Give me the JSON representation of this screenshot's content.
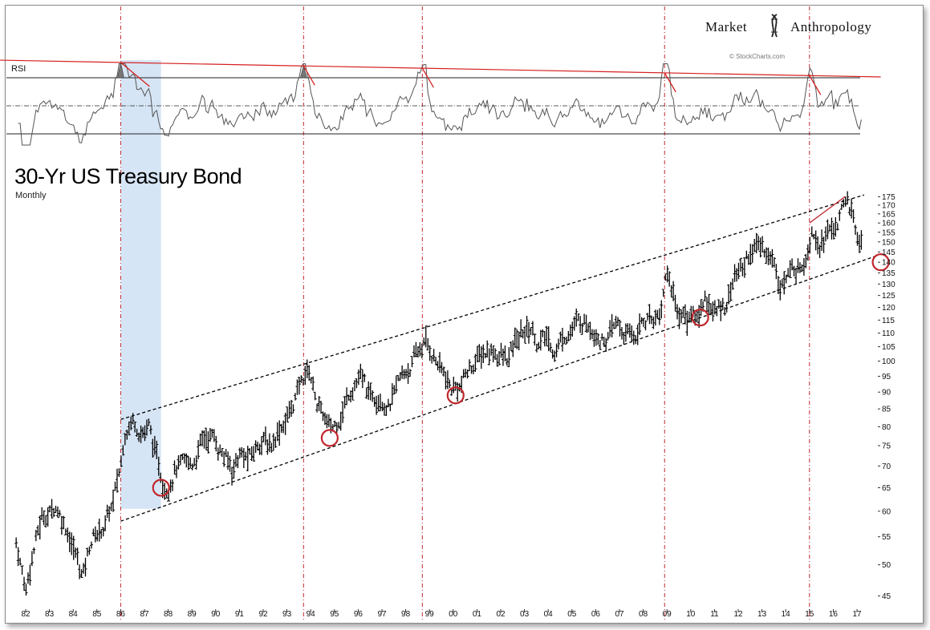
{
  "brand": {
    "left": "Market",
    "right": "Anthropology"
  },
  "watermark": "© StockCharts.com",
  "chart_data": [
    {
      "type": "line",
      "title": "RSI",
      "series": [],
      "levels": [
        70,
        50,
        30
      ],
      "resistance_trendline": {
        "from_year": 1980.8,
        "to_year": 2018.0,
        "description": "descending red line along RSI peaks"
      },
      "peaks_marked": [
        1986.0,
        1993.7,
        1998.7,
        2008.9,
        2015.0
      ],
      "colors": {
        "line": "#555555",
        "level": "#222222",
        "trend": "#d62020",
        "peak_fill": "#777777"
      }
    },
    {
      "type": "line",
      "title": "30-Yr US Treasury Bond",
      "subtitle": "Monthly",
      "y_scale": "log",
      "ylim": [
        43,
        180
      ],
      "y_ticks": [
        45,
        50,
        55,
        60,
        65,
        70,
        75,
        80,
        85,
        90,
        95,
        100,
        105,
        110,
        115,
        120,
        125,
        130,
        135,
        140,
        145,
        150,
        155,
        160,
        165,
        170,
        175
      ],
      "x_tick_labels": [
        "82",
        "83",
        "84",
        "85",
        "86",
        "87",
        "88",
        "89",
        "90",
        "91",
        "92",
        "93",
        "94",
        "95",
        "96",
        "97",
        "98",
        "99",
        "00",
        "01",
        "02",
        "03",
        "04",
        "05",
        "06",
        "07",
        "08",
        "09",
        "10",
        "11",
        "12",
        "13",
        "14",
        "15",
        "16",
        "17"
      ],
      "x_tick_years": [
        1982,
        1983,
        1984,
        1985,
        1986,
        1987,
        1988,
        1989,
        1990,
        1991,
        1992,
        1993,
        1994,
        1995,
        1996,
        1997,
        1998,
        1999,
        2000,
        2001,
        2002,
        2003,
        2004,
        2005,
        2006,
        2007,
        2008,
        2009,
        2010,
        2011,
        2012,
        2013,
        2014,
        2015,
        2016,
        2017
      ],
      "anchors": [
        [
          1981.6,
          54
        ],
        [
          1982.0,
          46
        ],
        [
          1982.3,
          52
        ],
        [
          1982.7,
          59
        ],
        [
          1983.3,
          61
        ],
        [
          1983.8,
          56
        ],
        [
          1984.4,
          48
        ],
        [
          1984.8,
          55
        ],
        [
          1985.3,
          57
        ],
        [
          1985.7,
          62
        ],
        [
          1986.0,
          70
        ],
        [
          1986.2,
          80
        ],
        [
          1986.5,
          82
        ],
        [
          1986.9,
          79
        ],
        [
          1987.2,
          80
        ],
        [
          1987.4,
          74
        ],
        [
          1987.8,
          66
        ],
        [
          1988.0,
          66
        ],
        [
          1988.3,
          70
        ],
        [
          1988.7,
          70
        ],
        [
          1989.0,
          70
        ],
        [
          1989.4,
          76
        ],
        [
          1989.8,
          78
        ],
        [
          1990.2,
          74
        ],
        [
          1990.7,
          69
        ],
        [
          1991.0,
          73
        ],
        [
          1991.5,
          72
        ],
        [
          1991.9,
          77
        ],
        [
          1992.3,
          75
        ],
        [
          1992.7,
          80
        ],
        [
          1993.2,
          85
        ],
        [
          1993.6,
          93
        ],
        [
          1993.9,
          98
        ],
        [
          1994.3,
          86
        ],
        [
          1994.8,
          79
        ],
        [
          1995.0,
          80
        ],
        [
          1995.4,
          86
        ],
        [
          1995.8,
          93
        ],
        [
          1996.1,
          95
        ],
        [
          1996.5,
          88
        ],
        [
          1996.9,
          90
        ],
        [
          1997.3,
          86
        ],
        [
          1997.7,
          92
        ],
        [
          1998.0,
          96
        ],
        [
          1998.4,
          101
        ],
        [
          1998.8,
          107
        ],
        [
          1999.1,
          103
        ],
        [
          1999.5,
          97
        ],
        [
          1999.9,
          91
        ],
        [
          2000.3,
          92
        ],
        [
          2000.7,
          97
        ],
        [
          2000.9,
          100
        ],
        [
          2001.3,
          103
        ],
        [
          2001.7,
          104
        ],
        [
          2002.0,
          102
        ],
        [
          2002.3,
          100
        ],
        [
          2002.7,
          108
        ],
        [
          2003.0,
          111
        ],
        [
          2003.3,
          112
        ],
        [
          2003.6,
          106
        ],
        [
          2003.9,
          108
        ],
        [
          2004.3,
          104
        ],
        [
          2004.7,
          110
        ],
        [
          2005.0,
          112
        ],
        [
          2005.5,
          115
        ],
        [
          2005.9,
          113
        ],
        [
          2006.3,
          108
        ],
        [
          2006.6,
          109
        ],
        [
          2006.9,
          113
        ],
        [
          2007.3,
          109
        ],
        [
          2007.7,
          109
        ],
        [
          2008.0,
          115
        ],
        [
          2008.5,
          117
        ],
        [
          2008.8,
          120
        ],
        [
          2008.95,
          137
        ],
        [
          2009.2,
          128
        ],
        [
          2009.5,
          118
        ],
        [
          2009.9,
          117
        ],
        [
          2010.3,
          116
        ],
        [
          2010.6,
          125
        ],
        [
          2010.9,
          120
        ],
        [
          2011.1,
          118
        ],
        [
          2011.5,
          122
        ],
        [
          2011.8,
          133
        ],
        [
          2012.2,
          138
        ],
        [
          2012.5,
          146
        ],
        [
          2012.9,
          147
        ],
        [
          2013.3,
          146
        ],
        [
          2013.7,
          133
        ],
        [
          2013.9,
          131
        ],
        [
          2014.3,
          136
        ],
        [
          2014.6,
          138
        ],
        [
          2014.9,
          146
        ],
        [
          2015.1,
          160
        ],
        [
          2015.4,
          152
        ],
        [
          2015.7,
          154
        ],
        [
          2016.0,
          157
        ],
        [
          2016.3,
          163
        ],
        [
          2016.6,
          173
        ],
        [
          2016.8,
          165
        ],
        [
          2016.95,
          153
        ],
        [
          2017.2,
          151
        ]
      ],
      "channel_upper": [
        [
          1986.0,
          82
        ],
        [
          2017.3,
          176
        ]
      ],
      "channel_lower": [
        [
          1986.0,
          58
        ],
        [
          2017.8,
          143
        ]
      ],
      "shaded_region": [
        1986.0,
        1987.7
      ],
      "vertical_markers": [
        1986.0,
        1993.7,
        1998.7,
        2008.9,
        2015.0
      ],
      "circled_lows": [
        [
          1987.7,
          65
        ],
        [
          1994.8,
          77
        ],
        [
          2000.1,
          89
        ],
        [
          2010.4,
          116
        ],
        [
          2018.0,
          140
        ]
      ],
      "recent_trendline": [
        [
          2015.0,
          160
        ],
        [
          2016.5,
          175
        ]
      ],
      "colors": {
        "bars": "#000000",
        "channel": "#000000",
        "marker": "#c0272d",
        "circle": "#c0272d",
        "shade": "#cfe0f3"
      }
    }
  ]
}
